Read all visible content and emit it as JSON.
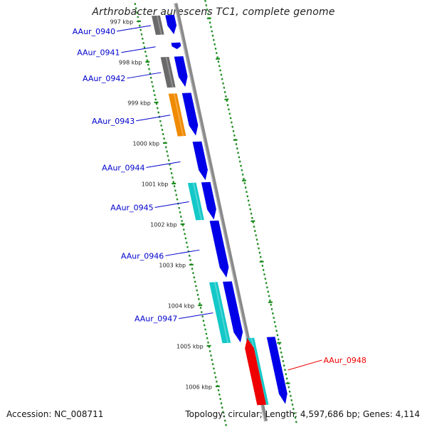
{
  "title": "Arthrobacter aurescens TC1, complete genome",
  "accession_text": "Accession: NC_008711",
  "stats_text": "Topology: circular; Length: 4,597,686 bp; Genes: 4,114",
  "colors": {
    "forward_gene": "#0000e8",
    "label_blue": "#0000cc",
    "highlight_red": "#ee0000",
    "cyan": "#14c8c8",
    "orange": "#f08a00",
    "gray_gene": "#6a6a6a",
    "backbone": "#8a8a8a",
    "tick_green": "#1a8a1a"
  },
  "kbp_ticks": [
    {
      "label": "997 kbp",
      "kbp": 997
    },
    {
      "label": "998 kbp",
      "kbp": 998
    },
    {
      "label": "999 kbp",
      "kbp": 999
    },
    {
      "label": "1000 kbp",
      "kbp": 1000
    },
    {
      "label": "1001 kbp",
      "kbp": 1001
    },
    {
      "label": "1002 kbp",
      "kbp": 1002
    },
    {
      "label": "1003 kbp",
      "kbp": 1003
    },
    {
      "label": "1004 kbp",
      "kbp": 1004
    },
    {
      "label": "1005 kbp",
      "kbp": 1005
    },
    {
      "label": "1006 kbp",
      "kbp": 1006
    }
  ],
  "genes": [
    {
      "name": "AAur_0940",
      "start_kbp": 996.88,
      "end_kbp": 997.35,
      "strand": "+",
      "highlight": false
    },
    {
      "name": "AAur_0941",
      "start_kbp": 997.56,
      "end_kbp": 997.72,
      "strand": "+",
      "highlight": false
    },
    {
      "name": "AAur_0942",
      "start_kbp": 997.9,
      "end_kbp": 998.65,
      "strand": "+",
      "highlight": false
    },
    {
      "name": "AAur_0943",
      "start_kbp": 998.8,
      "end_kbp": 999.85,
      "strand": "+",
      "highlight": false
    },
    {
      "name": "AAur_0944",
      "start_kbp": 1000.0,
      "end_kbp": 1000.95,
      "strand": "+",
      "highlight": false
    },
    {
      "name": "AAur_0945",
      "start_kbp": 1001.0,
      "end_kbp": 1001.92,
      "strand": "+",
      "highlight": false
    },
    {
      "name": "AAur_0946",
      "start_kbp": 1001.95,
      "end_kbp": 1003.35,
      "strand": "+",
      "highlight": false
    },
    {
      "name": "AAur_0947",
      "start_kbp": 1003.45,
      "end_kbp": 1004.95,
      "strand": "+",
      "highlight": false
    },
    {
      "name": "AAur_0948",
      "start_kbp": 1004.85,
      "end_kbp": 1006.5,
      "strand": "-",
      "highlight": true
    }
  ],
  "feature_tracks": [
    {
      "track": "gray",
      "start_kbp": 996.88,
      "end_kbp": 997.35
    },
    {
      "track": "gray",
      "start_kbp": 997.9,
      "end_kbp": 998.65
    },
    {
      "track": "orange",
      "start_kbp": 998.8,
      "end_kbp": 999.85
    },
    {
      "track": "cyan",
      "start_kbp": 1001.0,
      "end_kbp": 1001.92
    },
    {
      "track": "cyan",
      "start_kbp": 1003.45,
      "end_kbp": 1004.95
    },
    {
      "track": "cyan",
      "start_kbp": 1004.85,
      "end_kbp": 1006.5
    }
  ]
}
